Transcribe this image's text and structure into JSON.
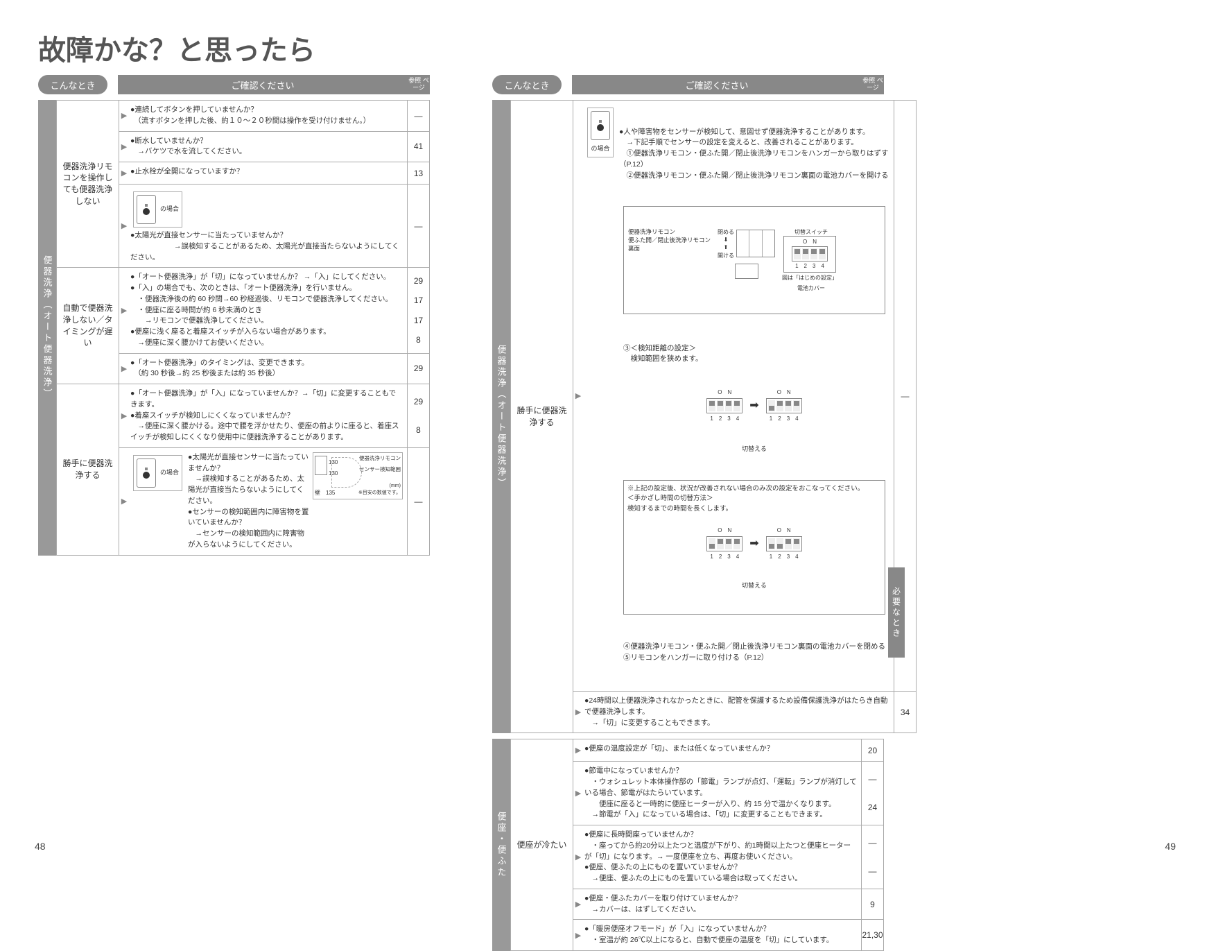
{
  "title": "故障かな？と思ったら",
  "headers": {
    "konnatoki": "こんなとき",
    "check": "ご確認ください",
    "ref": "参照\nページ"
  },
  "side_tab_right": "必要なとき",
  "page_num_left": "48",
  "page_num_right": "49",
  "left": {
    "vtab": "便器洗浄（オート便器洗浄）",
    "issues": [
      {
        "name": "便器洗浄リモコンを操作しても便器洗浄しない",
        "rows": [
          {
            "text": "●連続してボタンを押していませんか？\n　（流すボタンを押した後、約１０～２０秒間は操作を受け付けません。）",
            "refs": [
              "—"
            ]
          },
          {
            "text": "●断水していませんか？\n　→バケツで水を流してください。",
            "refs": [
              "41"
            ]
          },
          {
            "text": "●止水栓が全開になっていますか？",
            "refs": [
              "13"
            ]
          },
          {
            "text": "【リモコン図】の場合　●太陽光が直接センサーに当たっていませんか？\n　　　　　　→誤検知することがあるため、太陽光が直接当たらないようにしてください。",
            "refs": [
              "—"
            ],
            "hasRemote": true
          }
        ]
      },
      {
        "name": "自動で便器洗浄しない／タイミングが遅い",
        "rows": [
          {
            "text": "●「オート便器洗浄」が「切」になっていませんか？ →「入」にしてください。\n●「入」の場合でも、次のときは、「オート便器洗浄」を行いません。\n　・便器洗浄後の約 60 秒間→60 秒経過後、リモコンで便器洗浄してください。\n　・便座に座る時間が約 6 秒未満のとき\n　　→リモコンで便器洗浄してください。\n●便座に浅く座ると着座スイッチが入らない場合があります。\n　→便座に深く腰かけてお使いください。",
            "refs": [
              "29",
              "17",
              "17",
              "8"
            ]
          },
          {
            "text": "●「オート便器洗浄」のタイミングは、変更できます。\n　（約 30 秒後→約 25 秒後または約 35 秒後）",
            "refs": [
              "29"
            ]
          }
        ]
      },
      {
        "name": "勝手に便器洗浄する",
        "rows": [
          {
            "text": "●「オート便器洗浄」が「入」になっていませんか？→「切」に変更することもできます。\n●着座スイッチが検知しにくくなっていませんか？\n　→便座に深く腰かける。途中で腰を浮かせたり、便座の前よりに座ると、着座スイッチが検知しにくくなり使用中に便器洗浄することがあります。",
            "refs": [
              "29",
              "8"
            ]
          },
          {
            "text": "【リモコン図】の場合　●太陽光が直接センサーに当たっていませんか？\n　→誤検知することがあるため、太陽光が直接当たらないようにしてください。\n●センサーの検知範囲内に障害物を置いていませんか？\n　→センサーの検知範囲内に障害物が入らないようにしてください。",
            "refs": [
              "—"
            ],
            "hasRemote": true,
            "hasSensor": true,
            "sensor_labels": {
              "a": "便器洗浄リモコン",
              "b": "センサー検知範囲",
              "c": "壁",
              "d": "130",
              "e": "135",
              "f": "(mm)\n※目安の数値です。"
            }
          }
        ]
      }
    ]
  },
  "right": {
    "sections": [
      {
        "vtab": "便器洗浄（オート便器洗浄）",
        "issues": [
          {
            "name": "勝手に便器洗浄する",
            "rows": [
              {
                "text": "●人や障害物をセンサーが検知して、意図せず便器洗浄することがあります。\n　→下記手順でセンサーの設定を変えると、改善されることがあります。\n　①便器洗浄リモコン・便ふた開／閉止後洗浄リモコンをハンガーから取りはずす（P.12）\n　②便器洗浄リモコン・便ふた開／閉止後洗浄リモコン裏面の電池カバーを開ける",
                "refs": [
                  "—"
                ],
                "panel": {
                  "title_left": "便器洗浄リモコン\n便ふた開／閉止後洗浄リモコン\n裏面",
                  "close": "閉める",
                  "open": "開ける",
                  "switch_label": "切替スイッチ",
                  "on_label": "O　N",
                  "nums": "1　2　3　4",
                  "fig_note": "図は「はじめの設定」",
                  "battery_label": "電池カバー",
                  "step3_title": "③＜検知距離の設定＞\n　検知範囲を狭めます。",
                  "switch_action": "切替える",
                  "note_box": "※上記の設定後、状況が改善されない場合のみ次の設定をおこなってください。\n＜手かざし時間の切替方法＞\n検知するまでの時間を長くします。",
                  "step4": "④便器洗浄リモコン・便ふた開／閉止後洗浄リモコン裏面の電池カバーを閉める\n⑤リモコンをハンガーに取り付ける（P.12）"
                }
              },
              {
                "text": "●24時間以上便器洗浄されなかったときに、配管を保護するため設備保護洗浄がはたらき自動で便器洗浄します。\n　→「切」に変更することもできます。",
                "refs": [
                  "34"
                ]
              }
            ]
          }
        ]
      },
      {
        "vtab": "便座・便ふた",
        "issues": [
          {
            "name": "便座が冷たい",
            "rows": [
              {
                "text": "●便座の温度設定が「切」、または低くなっていませんか？",
                "refs": [
                  "20"
                ]
              },
              {
                "text": "●節電中になっていませんか？\n　・ウォシュレット本体操作部の「節電」ランプが点灯、「運転」ランプが消灯している場合、節電がはたらいています。\n　　便座に座ると一時的に便座ヒーターが入り、約 15 分で温かくなります。\n　→節電が「入」になっている場合は、「切」に変更することもできます。",
                "refs": [
                  "—",
                  "24"
                ]
              },
              {
                "text": "●便座に長時間座っていませんか？\n　・座ってから約20分以上たつと温度が下がり、約1時間以上たつと便座ヒーターが「切」になります。→ 一度便座を立ち、再度お使いください。\n●便座、便ふたの上にものを置いていませんか？\n　→便座、便ふたの上にものを置いている場合は取ってください。",
                "refs": [
                  "—",
                  "—"
                ]
              },
              {
                "text": "●便座・便ふたカバーを取り付けていませんか？\n　→カバーは、はずしてください。",
                "refs": [
                  "9"
                ]
              },
              {
                "text": "●「暖房便座オフモード」が「入」になっていませんか？\n　・室温が約 26℃以上になると、自動で便座の温度を「切」にしています。",
                "refs": [
                  "21,30"
                ]
              }
            ]
          }
        ]
      }
    ]
  }
}
